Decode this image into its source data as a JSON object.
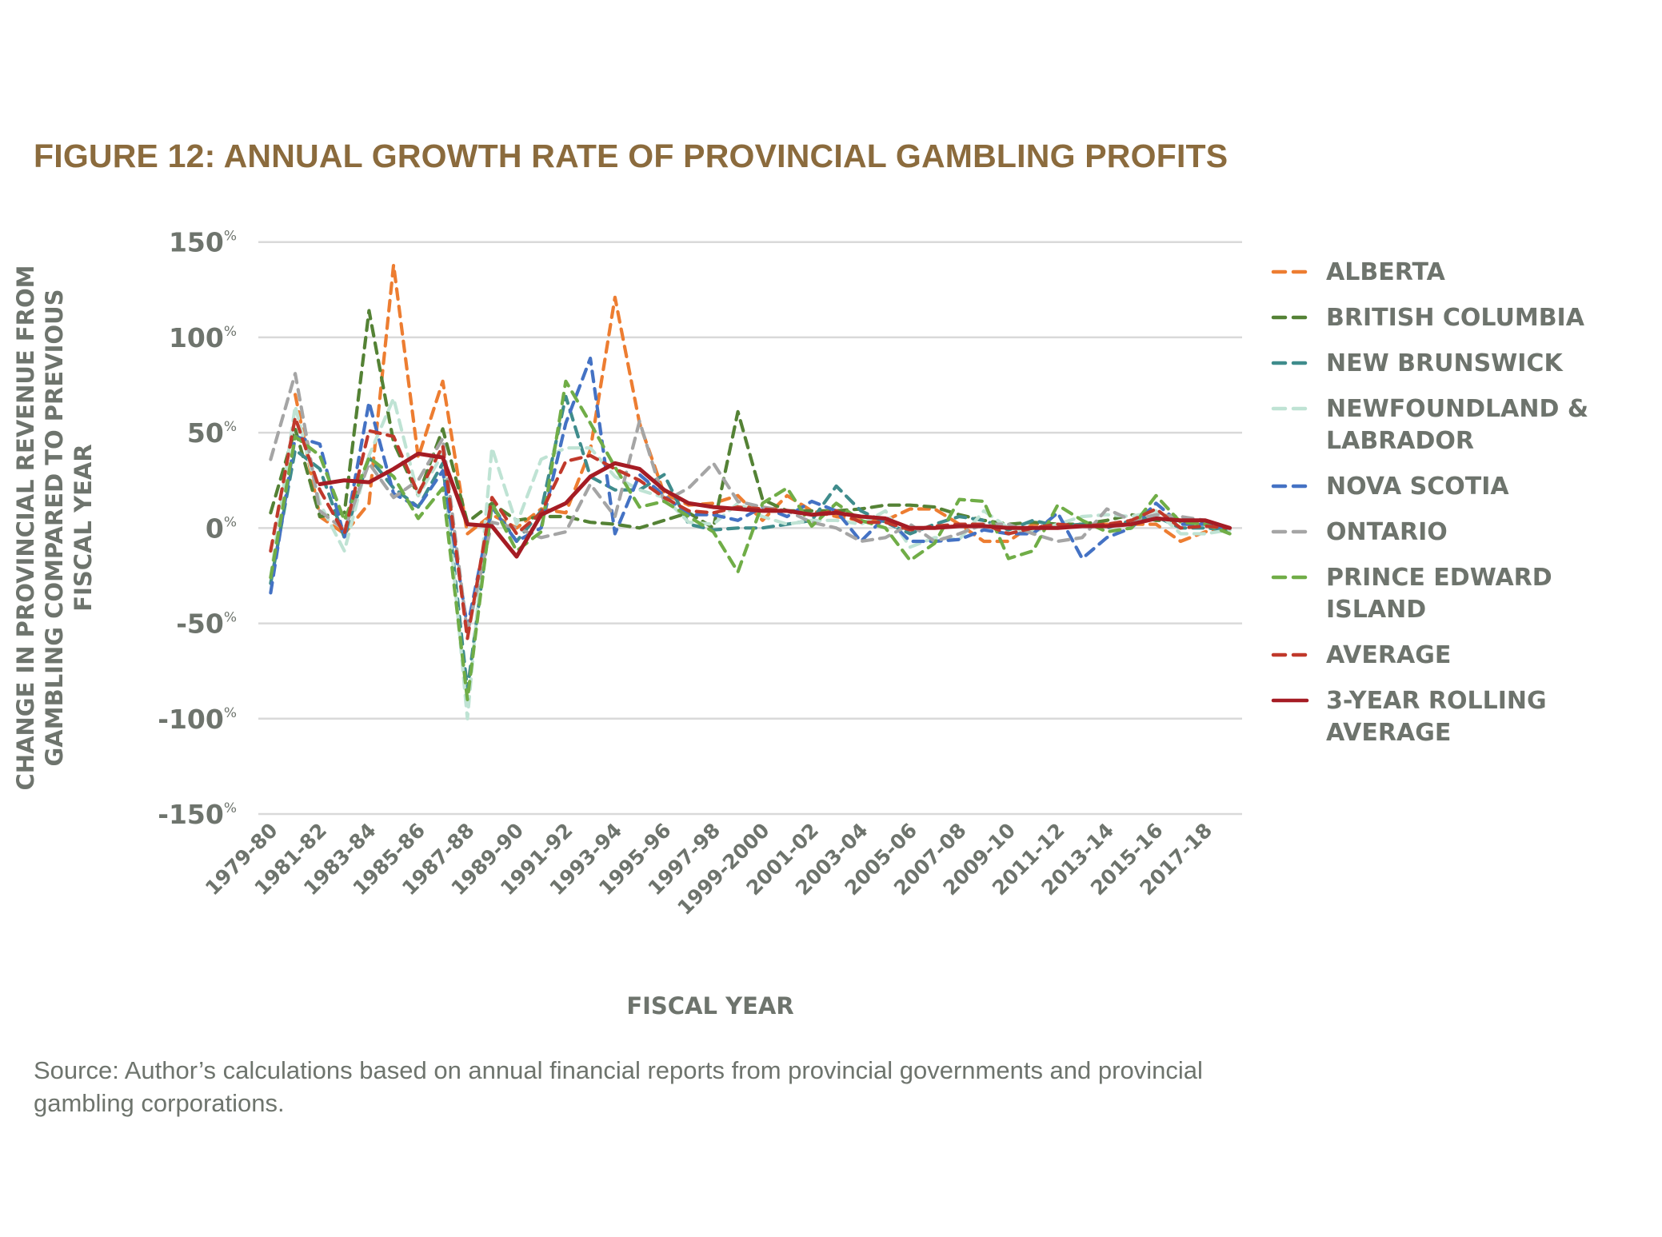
{
  "figure": {
    "title": "FIGURE 12: ANNUAL GROWTH RATE OF PROVINCIAL GAMBLING PROFITS",
    "title_color": "#8b6b3d",
    "text_color": "#6e746d",
    "source": "Source: Author’s calculations based on annual financial reports from provincial governments and provincial gambling corporations."
  },
  "chart_data": {
    "type": "line",
    "title": "FIGURE 12: ANNUAL GROWTH RATE OF PROVINCIAL GAMBLING PROFITS",
    "xlabel": "FISCAL YEAR",
    "ylabel_lines": [
      "CHANGE IN PROVINCIAL REVENUE FROM",
      "GAMBLING COMPARED TO PREVIOUS",
      "FISCAL YEAR"
    ],
    "ylabel": "CHANGE IN PROVINCIAL REVENUE FROM GAMBLING COMPARED TO PREVIOUS FISCAL YEAR",
    "ylim": [
      -150,
      150
    ],
    "yticks": [
      150,
      100,
      50,
      0,
      -50,
      -100,
      -150
    ],
    "ytick_unit": "%",
    "grid": "horizontal",
    "legend_position": "right",
    "categories": [
      "1979-80",
      "1980-81",
      "1981-82",
      "1982-83",
      "1983-84",
      "1984-85",
      "1985-86",
      "1986-87",
      "1987-88",
      "1988-89",
      "1989-90",
      "1990-91",
      "1991-92",
      "1992-93",
      "1993-94",
      "1994-95",
      "1995-96",
      "1996-97",
      "1997-98",
      "1998-99",
      "1999-2000",
      "2000-01",
      "2001-02",
      "2002-03",
      "2003-04",
      "2004-05",
      "2005-06",
      "2006-07",
      "2007-08",
      "2008-09",
      "2009-10",
      "2010-11",
      "2011-12",
      "2012-13",
      "2013-14",
      "2014-15",
      "2015-16",
      "2016-17",
      "2017-18",
      "2018-19"
    ],
    "tick_labels": [
      "1979-80",
      "1981-82",
      "1983-84",
      "1985-86",
      "1987-88",
      "1989-90",
      "1991-92",
      "1993-94",
      "1995-96",
      "1997-98",
      "1999-2000",
      "2001-02",
      "2003-04",
      "2005-06",
      "2007-08",
      "2009-10",
      "2011-12",
      "2013-14",
      "2015-16",
      "2017-18"
    ],
    "series": [
      {
        "name": "ALBERTA",
        "color": "#ed7d31",
        "style": "dashed",
        "values": [
          null,
          70,
          6,
          -3,
          13,
          138,
          37,
          77,
          -3,
          7,
          0,
          10,
          8,
          41,
          121,
          55,
          18,
          12,
          13,
          17,
          4,
          17,
          9,
          6,
          4,
          4,
          10,
          10,
          2,
          -7,
          -7,
          2,
          2,
          2,
          2,
          2,
          2,
          -7,
          -2,
          1
        ]
      },
      {
        "name": "BRITISH COLUMBIA",
        "color": "#548235",
        "style": "dashed",
        "values": [
          8,
          52,
          6,
          8,
          114,
          45,
          17,
          52,
          3,
          13,
          4,
          6,
          6,
          3,
          2,
          0,
          4,
          8,
          0,
          61,
          15,
          9,
          9,
          9,
          10,
          12,
          12,
          11,
          7,
          4,
          2,
          3,
          2,
          2,
          4,
          7,
          4,
          4,
          2,
          -1
        ]
      },
      {
        "name": "NEW BRUNSWICK",
        "color": "#3f8c8c",
        "style": "dashed",
        "values": [
          -29,
          41,
          31,
          -5,
          37,
          21,
          11,
          34,
          -85,
          12,
          -7,
          9,
          69,
          27,
          20,
          20,
          28,
          2,
          -1,
          0,
          0,
          2,
          4,
          22,
          9,
          3,
          -3,
          2,
          6,
          4,
          -1,
          4,
          1,
          2,
          0,
          4,
          6,
          0,
          0,
          -1
        ]
      },
      {
        "name": "NEWFOUNDLAND & LABRADOR",
        "color": "#bfe3d4",
        "style": "dashed",
        "values": [
          -26,
          64,
          13,
          -12,
          38,
          68,
          17,
          39,
          -100,
          42,
          2,
          36,
          42,
          42,
          27,
          20,
          16,
          3,
          2,
          13,
          6,
          2,
          4,
          4,
          2,
          9,
          -10,
          -5,
          -6,
          9,
          0,
          -2,
          2,
          6,
          7,
          6,
          9,
          -3,
          -3,
          -1
        ]
      },
      {
        "name": "NOVA SCOTIA",
        "color": "#4472c4",
        "style": "dashed",
        "values": [
          -34,
          48,
          44,
          -5,
          66,
          18,
          11,
          30,
          -52,
          11,
          -7,
          0,
          55,
          89,
          -3,
          28,
          17,
          7,
          7,
          4,
          11,
          6,
          14,
          9,
          -7,
          6,
          -7,
          -7,
          -6,
          -1,
          -3,
          -3,
          8,
          -16,
          -5,
          0,
          13,
          2,
          2,
          0
        ]
      },
      {
        "name": "ONTARIO",
        "color": "#a5a5a5",
        "style": "dashed",
        "values": [
          36,
          81,
          9,
          -1,
          34,
          16,
          25,
          47,
          -55,
          3,
          0,
          -5,
          -2,
          23,
          6,
          56,
          14,
          21,
          34,
          14,
          11,
          9,
          3,
          0,
          -7,
          -5,
          2,
          -7,
          -3,
          2,
          2,
          -3,
          -7,
          -5,
          10,
          4,
          7,
          6,
          4,
          0
        ]
      },
      {
        "name": "PRINCE EDWARD ISLAND",
        "color": "#70ad47",
        "style": "dashed",
        "values": [
          -26,
          48,
          38,
          4,
          37,
          27,
          5,
          21,
          -90,
          13,
          -12,
          -2,
          77,
          55,
          32,
          11,
          14,
          6,
          -2,
          -23,
          13,
          21,
          1,
          13,
          4,
          0,
          -17,
          -8,
          15,
          14,
          -16,
          -12,
          12,
          4,
          -2,
          0,
          17,
          3,
          2,
          -3
        ]
      },
      {
        "name": "AVERAGE",
        "color": "#c0392b",
        "style": "dashed",
        "values": [
          -12,
          58,
          20,
          -3,
          51,
          48,
          18,
          43,
          -58,
          16,
          -3,
          8,
          35,
          38,
          31,
          25,
          16,
          9,
          8,
          11,
          10,
          9,
          7,
          9,
          3,
          3,
          -1,
          1,
          2,
          2,
          -3,
          0,
          2,
          1,
          2,
          4,
          10,
          0,
          1,
          0
        ]
      },
      {
        "name": "3-YEAR ROLLING AVERAGE",
        "color": "#a51c24",
        "style": "solid",
        "values": [
          null,
          null,
          23,
          25,
          24,
          31,
          39,
          37,
          2,
          1,
          -15,
          7,
          13,
          27,
          34,
          31,
          20,
          13,
          11,
          10,
          9,
          9,
          7,
          8,
          6,
          5,
          0,
          0,
          1,
          1,
          0,
          0,
          0,
          1,
          1,
          2,
          5,
          4,
          4,
          0
        ]
      }
    ]
  }
}
